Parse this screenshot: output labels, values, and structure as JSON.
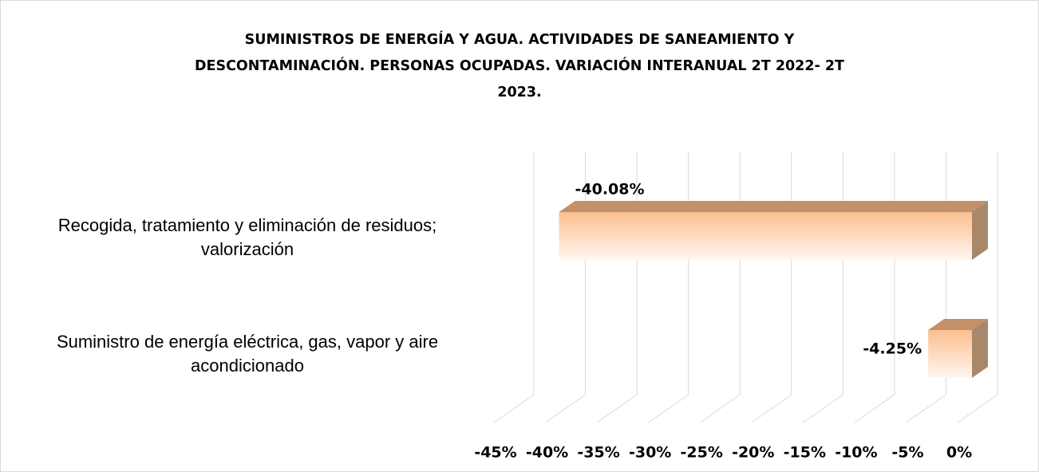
{
  "chart_data": {
    "type": "bar3d-horizontal",
    "title": "SUMINISTROS DE ENERGÍA Y AGUA. ACTIVIDADES DE SANEAMIENTO Y DESCONTAMINACIÓN. PERSONAS OCUPADAS. VARIACIÓN INTERANUAL 2T 2022- 2T 2023.",
    "categories": [
      "Suministro de energía eléctrica, gas, vapor y aire acondicionado",
      "Recogida, tratamiento  y eliminación de residuos; valorización"
    ],
    "values": [
      -4.25,
      -40.08
    ],
    "value_labels": [
      "-4.25%",
      "-40.08%"
    ],
    "color": "#fbbf8f",
    "xlim": [
      -45,
      0
    ],
    "xticks": [
      {
        "value": -45,
        "label": "-45%"
      },
      {
        "value": -40,
        "label": "-40%"
      },
      {
        "value": -35,
        "label": "-35%"
      },
      {
        "value": -30,
        "label": "-30%"
      },
      {
        "value": -25,
        "label": "-25%"
      },
      {
        "value": -20,
        "label": "-20%"
      },
      {
        "value": -15,
        "label": "-15%"
      },
      {
        "value": -10,
        "label": "-10%"
      },
      {
        "value": -5,
        "label": "-5%"
      },
      {
        "value": 0,
        "label": "0%"
      }
    ],
    "grid": true
  }
}
